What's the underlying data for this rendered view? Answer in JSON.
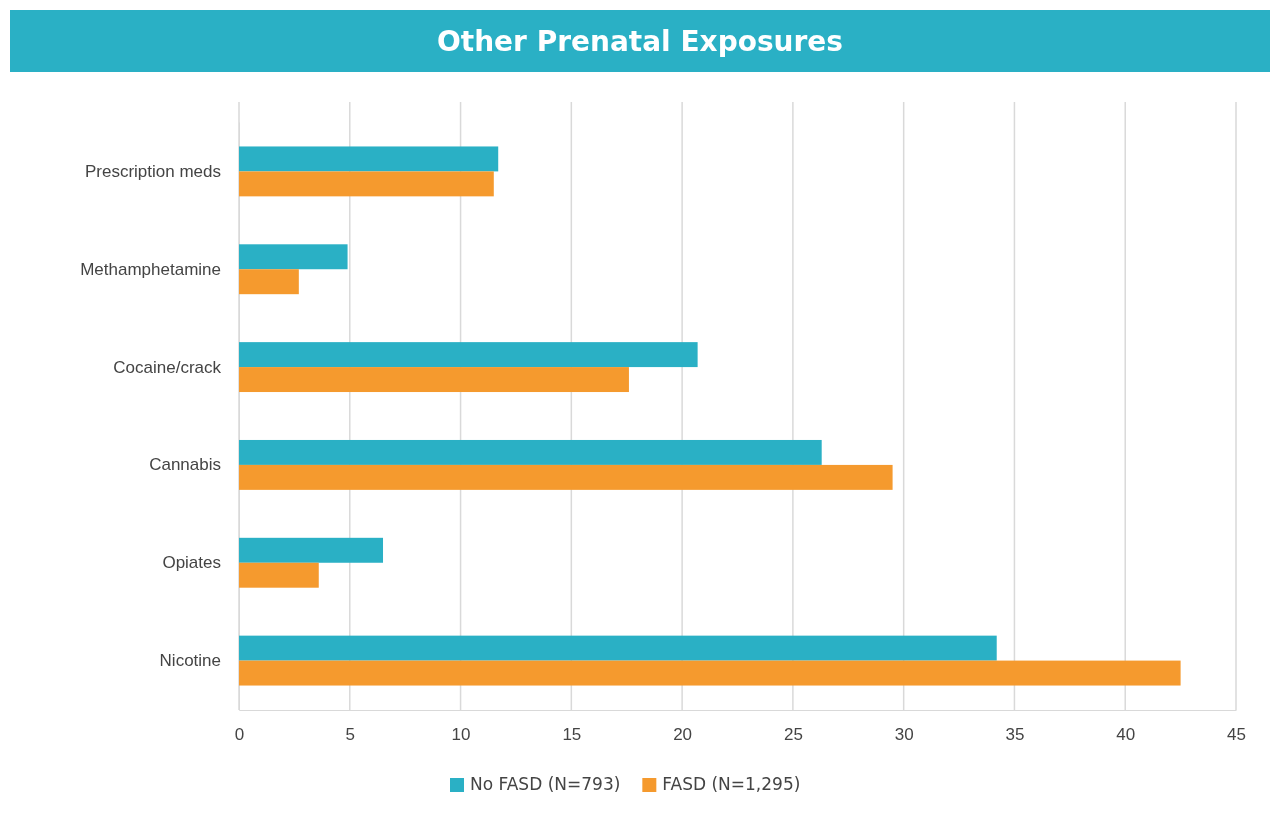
{
  "chart_data": {
    "type": "bar",
    "orientation": "horizontal",
    "title": "Other Prenatal Exposures",
    "categories": [
      "Prescription meds",
      "Methamphetamine",
      "Cocaine/crack",
      "Cannabis",
      "Opiates",
      "Nicotine"
    ],
    "series": [
      {
        "name": "No FASD (N=793)",
        "color": "#2ab0c5",
        "values": [
          11.7,
          4.9,
          20.7,
          26.3,
          6.5,
          34.2
        ]
      },
      {
        "name": "FASD (N=1,295)",
        "color": "#f59a2e",
        "values": [
          11.5,
          2.7,
          17.6,
          29.5,
          3.6,
          42.5
        ]
      }
    ],
    "xlim": [
      0,
      45
    ],
    "xticks": [
      0,
      5,
      10,
      15,
      20,
      25,
      30,
      35,
      40,
      45
    ],
    "grid": "x",
    "legend": "bottom"
  }
}
